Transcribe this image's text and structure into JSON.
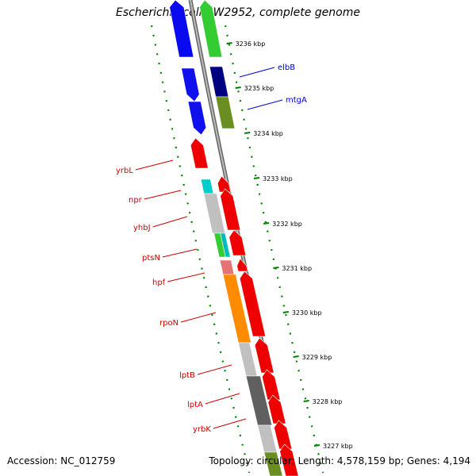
{
  "title": "Escherichia coli BW2952, complete genome",
  "footer": {
    "accession": "Accession: NC_012759",
    "summary": "Topology: circular; Length: 4,578,159 bp; Genes: 4,194"
  },
  "colors": {
    "label_forward": "#0000cc",
    "label_reverse": "#cc0000",
    "tick": "#008000",
    "backbone": "#888888"
  },
  "scale": {
    "unit": "kbp",
    "ticks": [
      "3236",
      "3235",
      "3234",
      "3233",
      "3232",
      "3231",
      "3230",
      "3229",
      "3228",
      "3227"
    ]
  },
  "gene_labels": {
    "forward": [
      "elbB",
      "mtgA"
    ],
    "reverse": [
      "yrbL",
      "npr",
      "yhbJ",
      "ptsN",
      "hpf",
      "rpoN",
      "lptB",
      "lptA",
      "yrbK"
    ]
  }
}
